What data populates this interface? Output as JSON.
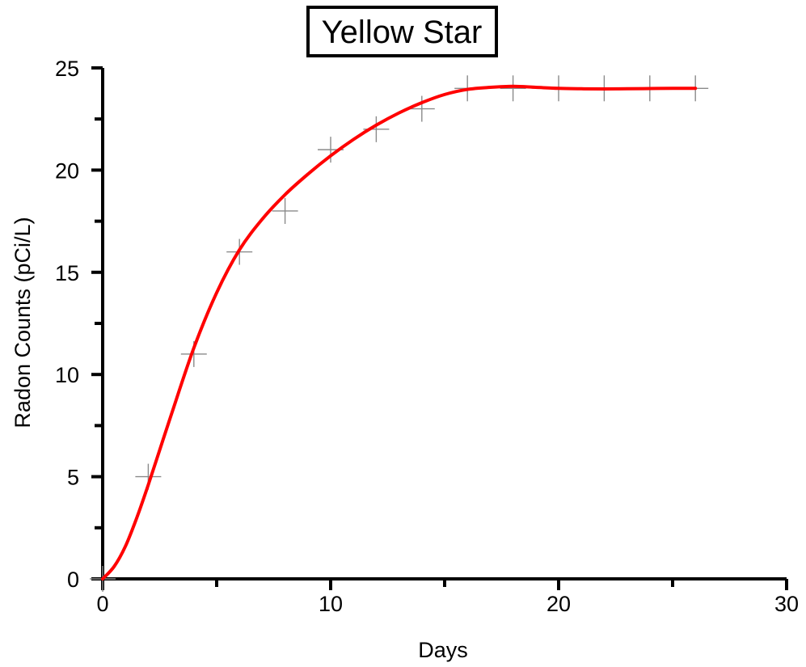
{
  "chart_data": {
    "type": "scatter",
    "title": "Yellow Star",
    "xlabel": "Days",
    "ylabel": "Radon Counts (pCi/L)",
    "xlim": [
      0,
      30
    ],
    "ylim": [
      0,
      25
    ],
    "x_ticks": [
      "0",
      "10",
      "20",
      "30"
    ],
    "y_ticks": [
      "0",
      "5",
      "10",
      "15",
      "20",
      "25"
    ],
    "grid": false,
    "series": [
      {
        "kind": "markers",
        "marker": "plus",
        "color": "#8a8a8a",
        "x": [
          0,
          2,
          4,
          6,
          8,
          10,
          12,
          14,
          16,
          18,
          20,
          22,
          24,
          26
        ],
        "y": [
          0,
          5,
          11,
          16,
          18,
          21,
          22,
          23,
          24,
          24,
          24,
          24,
          24,
          24
        ]
      },
      {
        "kind": "line",
        "color": "#ff0000",
        "x": [
          0,
          0.5,
          1,
          1.5,
          2,
          2.5,
          3,
          4,
          5,
          6,
          7,
          8,
          9,
          10,
          11,
          12,
          13,
          14,
          15,
          16,
          17,
          18,
          19,
          20,
          21,
          22,
          23,
          24,
          25,
          26
        ],
        "y": [
          0,
          0.6,
          1.6,
          3.0,
          4.6,
          6.3,
          8.0,
          11.3,
          14.0,
          16.1,
          17.6,
          18.8,
          19.8,
          20.7,
          21.5,
          22.2,
          22.8,
          23.3,
          23.7,
          23.95,
          24.05,
          24.1,
          24.05,
          24.0,
          23.98,
          23.97,
          23.98,
          23.99,
          24.0,
          24.0
        ]
      }
    ]
  }
}
